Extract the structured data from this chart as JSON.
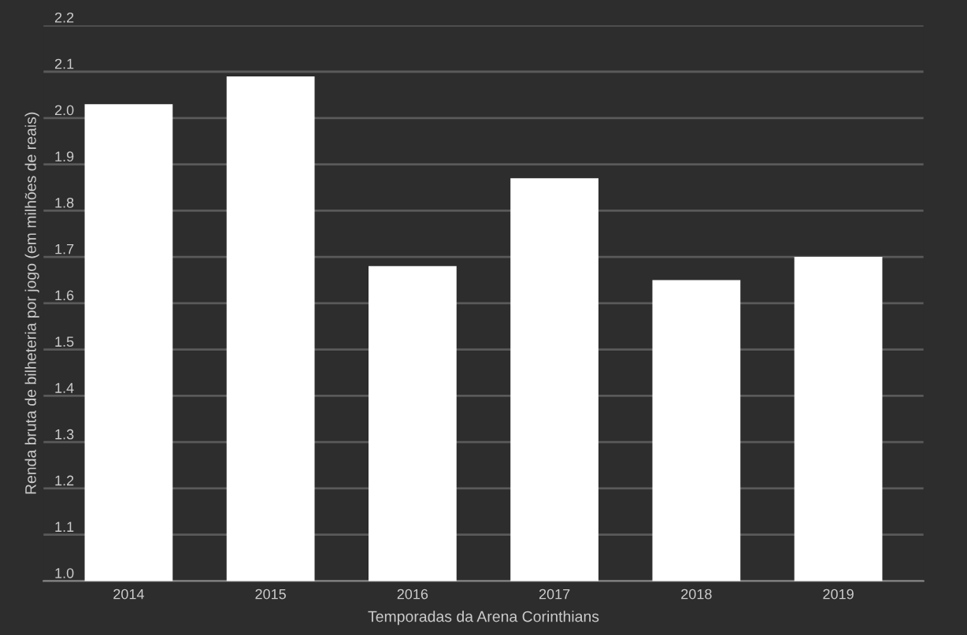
{
  "chart_data": {
    "type": "bar",
    "xlabel": "Temporadas da Arena Corinthians",
    "ylabel": "Renda bruta de bilheteria por jogo (em milhões de reais)",
    "categories": [
      "2014",
      "2015",
      "2016",
      "2017",
      "2018",
      "2019"
    ],
    "values": [
      2.03,
      2.09,
      1.68,
      1.87,
      1.65,
      1.7
    ],
    "color": "#ffffff",
    "ylim": [
      1.0,
      2.2
    ],
    "yticks": [
      {
        "value": 1.0,
        "label": "1.0"
      },
      {
        "value": 1.1,
        "label": "1.1"
      },
      {
        "value": 1.2,
        "label": "1.2"
      },
      {
        "value": 1.3,
        "label": "1.3"
      },
      {
        "value": 1.4,
        "label": "1.4"
      },
      {
        "value": 1.5,
        "label": "1.5"
      },
      {
        "value": 1.6,
        "label": "1.6"
      },
      {
        "value": 1.7,
        "label": "1.7"
      },
      {
        "value": 1.8,
        "label": "1.8"
      },
      {
        "value": 1.9,
        "label": "1.9"
      },
      {
        "value": 2.0,
        "label": "2.0"
      },
      {
        "value": 2.1,
        "label": "2.1"
      },
      {
        "value": 2.2,
        "label": "2.2"
      }
    ],
    "grid": "y"
  }
}
